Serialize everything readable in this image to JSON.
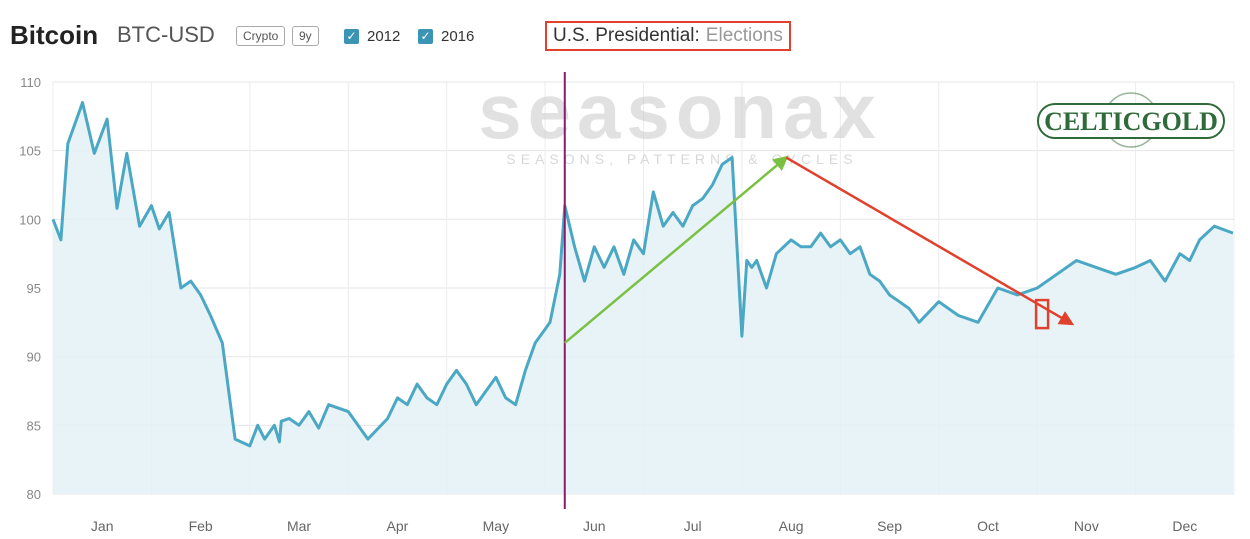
{
  "header": {
    "title": "Bitcoin",
    "symbol": "BTC-USD",
    "badges": [
      "Crypto",
      "9y"
    ],
    "checkboxes": [
      {
        "label": "2012",
        "checked": true
      },
      {
        "label": "2016",
        "checked": true
      }
    ],
    "filter_key": "U.S. Presidential:",
    "filter_value": "Elections"
  },
  "watermark": {
    "brand": "seasonax",
    "tagline": "SEASONS, PATTERNS & CYCLES"
  },
  "logo": {
    "text": "CELTICGOLD"
  },
  "colors": {
    "line": "#4ba8c4",
    "fill": "#e3f1f6",
    "vertical_marker": "#8b1a6b",
    "green_arrow": "#7ac143",
    "red_arrow": "#e0402c",
    "logo_green": "#2f6b3a"
  },
  "chart_data": {
    "type": "area",
    "title": "Bitcoin BTC-USD seasonality (U.S. Presidential Elections)",
    "xlabel": "",
    "ylabel": "",
    "ylim": [
      80,
      110
    ],
    "yticks": [
      80,
      85,
      90,
      95,
      100,
      105,
      110
    ],
    "months": [
      "Jan",
      "Feb",
      "Mar",
      "Apr",
      "May",
      "Jun",
      "Jul",
      "Aug",
      "Sep",
      "Oct",
      "Nov",
      "Dec"
    ],
    "series": [
      {
        "name": "BTC-USD",
        "x": [
          0,
          0.08,
          0.15,
          0.3,
          0.42,
          0.55,
          0.65,
          0.75,
          0.88,
          1.0,
          1.08,
          1.18,
          1.3,
          1.4,
          1.5,
          1.6,
          1.72,
          1.85,
          2.0,
          2.08,
          2.15,
          2.25,
          2.3,
          2.32,
          2.4,
          2.5,
          2.6,
          2.7,
          2.8,
          3.0,
          3.2,
          3.4,
          3.5,
          3.6,
          3.7,
          3.8,
          3.9,
          4.0,
          4.1,
          4.2,
          4.3,
          4.4,
          4.5,
          4.6,
          4.7,
          4.8,
          4.9,
          5.0,
          5.05,
          5.15,
          5.2,
          5.3,
          5.4,
          5.5,
          5.6,
          5.7,
          5.8,
          5.9,
          6.0,
          6.1,
          6.2,
          6.3,
          6.4,
          6.5,
          6.6,
          6.7,
          6.8,
          6.9,
          7.0,
          7.05,
          7.1,
          7.15,
          7.25,
          7.35,
          7.5,
          7.6,
          7.7,
          7.8,
          7.9,
          8.0,
          8.1,
          8.2,
          8.3,
          8.4,
          8.5,
          8.6,
          8.7,
          8.8,
          9.0,
          9.2,
          9.4,
          9.6,
          9.8,
          10.0,
          10.2,
          10.4,
          10.6,
          10.8,
          11.0,
          11.15,
          11.3,
          11.45,
          11.55,
          11.65,
          11.8,
          11.99
        ],
        "values": [
          100,
          98.5,
          105.5,
          108.5,
          104.8,
          107.3,
          100.8,
          104.8,
          99.5,
          101,
          99.3,
          100.5,
          95,
          95.5,
          94.5,
          93,
          91,
          84,
          83.5,
          85,
          84,
          85,
          83.8,
          85.3,
          85.5,
          85,
          86,
          84.8,
          86.5,
          86,
          84,
          85.5,
          87,
          86.5,
          88,
          87,
          86.5,
          88,
          89,
          88,
          86.5,
          87.5,
          88.5,
          87,
          86.5,
          89,
          91,
          92,
          92.5,
          96,
          101,
          98,
          95.5,
          98,
          96.5,
          98,
          96,
          98.5,
          97.5,
          102,
          99.5,
          100.5,
          99.5,
          101,
          101.5,
          102.5,
          104,
          104.5,
          91.5,
          97,
          96.5,
          97,
          95,
          97.5,
          98.5,
          98,
          98,
          99,
          98,
          98.5,
          97.5,
          98,
          96,
          95.5,
          94.5,
          94,
          93.5,
          92.5,
          94,
          93,
          92.5,
          95,
          94.5,
          95,
          96,
          97,
          96.5,
          96,
          96.5,
          97,
          95.5,
          97.5,
          97,
          98.5,
          99.5,
          99
        ]
      }
    ],
    "annotations": [
      {
        "type": "vertical_line",
        "x": 5.2,
        "label": ""
      },
      {
        "type": "arrow",
        "color": "green",
        "from": {
          "x": 5.2,
          "y": 91
        },
        "to": {
          "x": 7.45,
          "y": 104.5
        }
      },
      {
        "type": "arrow",
        "color": "red",
        "from": {
          "x": 7.45,
          "y": 104.5
        },
        "to": {
          "x": 10.35,
          "y": 92.4
        }
      },
      {
        "type": "box_marker",
        "x": 10.05,
        "y": 93.1
      }
    ]
  }
}
